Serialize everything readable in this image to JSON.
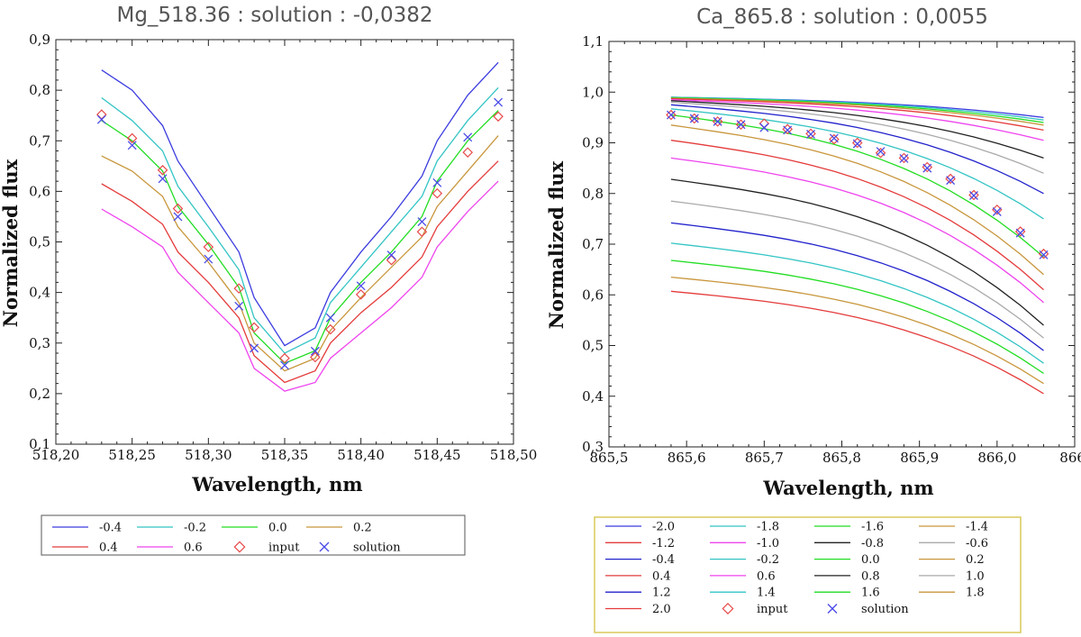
{
  "chart_data": [
    {
      "type": "line",
      "title": "Mg_518.36 : solution : -0,0382",
      "xlabel": "Wavelength, nm",
      "ylabel": "Normalized flux",
      "xlim": [
        518.2,
        518.5
      ],
      "ylim": [
        0.1,
        0.9
      ],
      "xticks": [
        "518,20",
        "518,25",
        "518,30",
        "518,35",
        "518,40",
        "518,45",
        "518,50"
      ],
      "yticks": [
        "0,1",
        "0,2",
        "0,3",
        "0,4",
        "0,5",
        "0,6",
        "0,7",
        "0,8",
        "0,9"
      ],
      "x": [
        518.23,
        518.25,
        518.27,
        518.28,
        518.3,
        518.32,
        518.33,
        518.35,
        518.37,
        518.38,
        518.4,
        518.42,
        518.44,
        518.45,
        518.47,
        518.49
      ],
      "series": [
        {
          "name": "-0.4",
          "color": "#3b3bdf",
          "values": [
            0.84,
            0.8,
            0.73,
            0.66,
            0.57,
            0.48,
            0.39,
            0.295,
            0.33,
            0.4,
            0.48,
            0.55,
            0.63,
            0.7,
            0.79,
            0.855
          ]
        },
        {
          "name": "-0.2",
          "color": "#33c4c4",
          "values": [
            0.785,
            0.74,
            0.68,
            0.61,
            0.53,
            0.445,
            0.35,
            0.28,
            0.31,
            0.38,
            0.45,
            0.52,
            0.59,
            0.66,
            0.74,
            0.805
          ]
        },
        {
          "name": "0.0",
          "color": "#22dd22",
          "values": [
            0.74,
            0.7,
            0.64,
            0.57,
            0.495,
            0.41,
            0.32,
            0.26,
            0.285,
            0.35,
            0.42,
            0.48,
            0.55,
            0.62,
            0.7,
            0.76
          ]
        },
        {
          "name": "0.2",
          "color": "#c8963c",
          "values": [
            0.67,
            0.64,
            0.59,
            0.53,
            0.46,
            0.38,
            0.3,
            0.245,
            0.27,
            0.325,
            0.39,
            0.45,
            0.51,
            0.57,
            0.64,
            0.71
          ]
        },
        {
          "name": "0.4",
          "color": "#e43b3b",
          "values": [
            0.615,
            0.58,
            0.535,
            0.48,
            0.42,
            0.35,
            0.275,
            0.222,
            0.245,
            0.3,
            0.36,
            0.41,
            0.47,
            0.53,
            0.6,
            0.66
          ]
        },
        {
          "name": "0.6",
          "color": "#ee44ee",
          "values": [
            0.565,
            0.53,
            0.49,
            0.44,
            0.38,
            0.32,
            0.25,
            0.205,
            0.222,
            0.27,
            0.32,
            0.37,
            0.43,
            0.49,
            0.56,
            0.62
          ]
        }
      ],
      "input": [
        0.752,
        0.705,
        0.642,
        0.566,
        0.49,
        0.408,
        0.331,
        0.27,
        0.272,
        0.327,
        0.396,
        0.464,
        0.52,
        0.596,
        0.677,
        0.748
      ],
      "solution": [
        0.742,
        0.691,
        0.625,
        0.55,
        0.466,
        0.373,
        0.29,
        0.256,
        0.284,
        0.35,
        0.413,
        0.474,
        0.54,
        0.617,
        0.707,
        0.776
      ],
      "legend": [
        "-0.4",
        "-0.2",
        "0.0",
        "0.2",
        "0.4",
        "0.6",
        "input",
        "solution"
      ]
    },
    {
      "type": "line",
      "title": "Ca_865.8 :  solution : 0,0055",
      "xlabel": "Wavelength, nm",
      "ylabel": "Normalized flux",
      "xlim": [
        865.5,
        866.1
      ],
      "ylim": [
        0.3,
        1.1
      ],
      "xticks": [
        "865,5",
        "865,6",
        "865,7",
        "865,8",
        "865,9",
        "866,0",
        "866,"
      ],
      "yticks": [
        "0,3",
        "0,4",
        "0,5",
        "0,6",
        "0,7",
        "0,8",
        "0,9",
        "1,0",
        "1,1"
      ],
      "x": [
        865.58,
        865.61,
        865.64,
        865.67,
        865.7,
        865.73,
        865.76,
        865.79,
        865.82,
        865.85,
        865.88,
        865.91,
        865.94,
        865.97,
        866.0,
        866.03,
        866.06
      ],
      "series": [
        {
          "name": "-2.0",
          "color": "#3b3bdf",
          "start": 0.99,
          "end": 0.95
        },
        {
          "name": "-1.8",
          "color": "#33c4c4",
          "start": 0.99,
          "end": 0.945
        },
        {
          "name": "-1.6",
          "color": "#22dd22",
          "start": 0.989,
          "end": 0.94
        },
        {
          "name": "-1.4",
          "color": "#c8963c",
          "start": 0.988,
          "end": 0.935
        },
        {
          "name": "-1.2",
          "color": "#e43b3b",
          "start": 0.987,
          "end": 0.925
        },
        {
          "name": "-1.0",
          "color": "#ee44ee",
          "start": 0.985,
          "end": 0.905
        },
        {
          "name": "-0.8",
          "color": "#222222",
          "start": 0.983,
          "end": 0.87
        },
        {
          "name": "-0.6",
          "color": "#aaaaaa",
          "start": 0.98,
          "end": 0.84
        },
        {
          "name": "-0.4",
          "color": "#2222cc",
          "start": 0.975,
          "end": 0.8
        },
        {
          "name": "-0.2",
          "color": "#33c4c4",
          "start": 0.967,
          "end": 0.75
        },
        {
          "name": "0.0",
          "color": "#22dd22",
          "start": 0.955,
          "end": 0.675
        },
        {
          "name": "0.2",
          "color": "#c8963c",
          "start": 0.935,
          "end": 0.64
        },
        {
          "name": "0.4",
          "color": "#e43b3b",
          "start": 0.905,
          "end": 0.61
        },
        {
          "name": "0.6",
          "color": "#ee44ee",
          "start": 0.87,
          "end": 0.585
        },
        {
          "name": "0.8",
          "color": "#222222",
          "start": 0.828,
          "end": 0.54
        },
        {
          "name": "1.0",
          "color": "#aaaaaa",
          "start": 0.785,
          "end": 0.515
        },
        {
          "name": "1.2",
          "color": "#2222cc",
          "start": 0.742,
          "end": 0.49
        },
        {
          "name": "1.4",
          "color": "#33c4c4",
          "start": 0.702,
          "end": 0.465
        },
        {
          "name": "1.6",
          "color": "#22dd22",
          "start": 0.668,
          "end": 0.445
        },
        {
          "name": "1.8",
          "color": "#c8963c",
          "start": 0.635,
          "end": 0.425
        },
        {
          "name": "2.0",
          "color": "#e43b3b",
          "start": 0.607,
          "end": 0.405
        }
      ],
      "input": [
        0.955,
        0.948,
        0.942,
        0.936,
        0.938,
        0.927,
        0.918,
        0.907,
        0.9,
        0.88,
        0.87,
        0.852,
        0.829,
        0.797,
        0.768,
        0.725,
        0.681
      ],
      "solution": [
        0.955,
        0.948,
        0.942,
        0.936,
        0.93,
        0.925,
        0.917,
        0.909,
        0.898,
        0.883,
        0.869,
        0.85,
        0.826,
        0.796,
        0.764,
        0.722,
        0.679
      ],
      "legend": [
        "-2.0",
        "-1.8",
        "-1.6",
        "-1.4",
        "-1.2",
        "-1.0",
        "-0.8",
        "-0.6",
        "-0.4",
        "-0.2",
        "0.0",
        "0.2",
        "0.4",
        "0.6",
        "0.8",
        "1.0",
        "1.2",
        "1.4",
        "1.6",
        "1.8",
        "2.0",
        "input",
        "solution"
      ]
    }
  ],
  "colors": {
    "input": "#e84a4a",
    "solution": "#4a4ae8",
    "legend_border_right": "#d8c85a",
    "legend_border_left": "#555555"
  }
}
